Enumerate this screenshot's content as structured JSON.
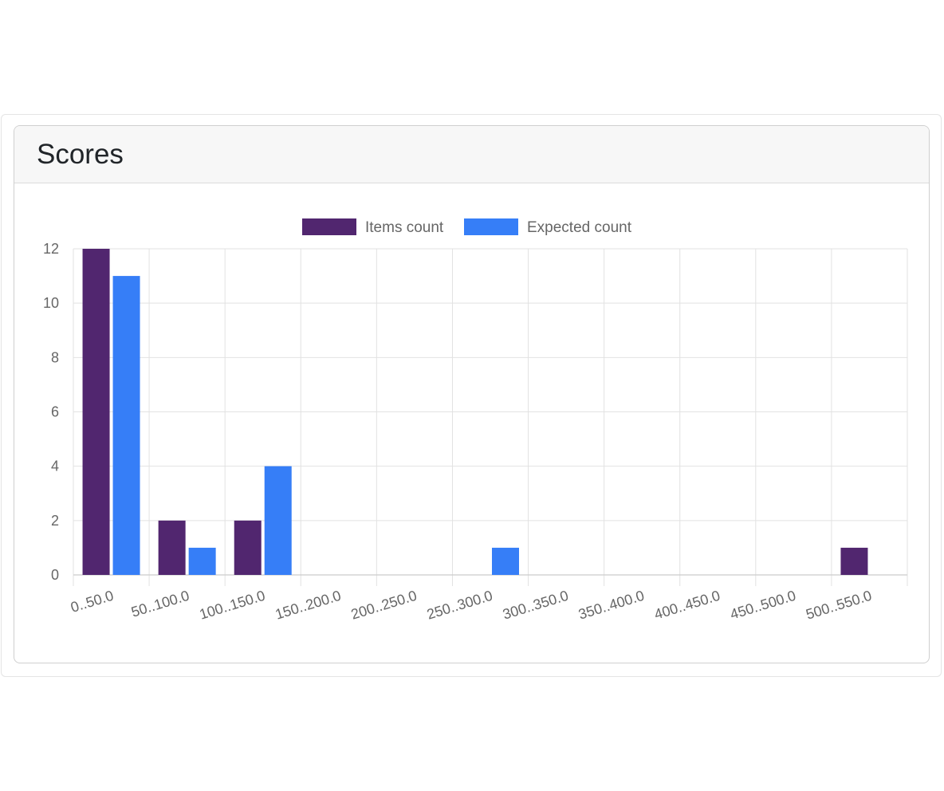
{
  "card": {
    "title": "Scores"
  },
  "colors": {
    "items_count": "#51266f",
    "expected_count": "#367ef7",
    "grid": "#e2e2e2",
    "axis_text": "#666666"
  },
  "chart_data": {
    "type": "bar",
    "title": "",
    "xlabel": "",
    "ylabel": "",
    "categories": [
      "0..50.0",
      "50..100.0",
      "100..150.0",
      "150..200.0",
      "200..250.0",
      "250..300.0",
      "300..350.0",
      "350..400.0",
      "400..450.0",
      "450..500.0",
      "500..550.0"
    ],
    "series": [
      {
        "name": "Items count",
        "color": "#51266f",
        "values": [
          12,
          2,
          2,
          0,
          0,
          0,
          0,
          0,
          0,
          0,
          1
        ]
      },
      {
        "name": "Expected count",
        "color": "#367ef7",
        "values": [
          11,
          1,
          4,
          0,
          0,
          1,
          0,
          0,
          0,
          0,
          0
        ]
      }
    ],
    "ylim": [
      0,
      12
    ],
    "yticks": [
      "0",
      "2",
      "4",
      "6",
      "8",
      "10",
      "12"
    ],
    "grid": true,
    "legend": "top-center"
  }
}
